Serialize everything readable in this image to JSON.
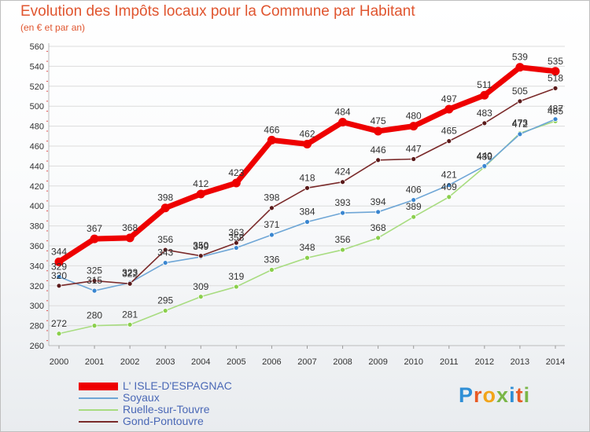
{
  "header": {
    "title": "Evolution des Impôts locaux pour la Commune par Habitant",
    "subtitle": "(en € et par an)"
  },
  "brand": {
    "text": "Proxiti",
    "letter_colors": [
      "#2f8fd6",
      "#e85a24",
      "#f2a51a",
      "#7ab648",
      "#2f8fd6",
      "#e85a24",
      "#7ab648"
    ]
  },
  "chart_data": {
    "type": "line",
    "title": "Evolution des Impôts locaux pour la Commune par Habitant",
    "subtitle": "(en € et par an)",
    "xlabel": "",
    "ylabel": "",
    "x": [
      "2000",
      "2001",
      "2002",
      "2003",
      "2004",
      "2005",
      "2006",
      "2007",
      "2008",
      "2009",
      "2010",
      "2011",
      "2012",
      "2013",
      "2014"
    ],
    "ylim": [
      260,
      560
    ],
    "yticks": [
      260,
      280,
      300,
      320,
      340,
      360,
      380,
      400,
      420,
      440,
      460,
      480,
      500,
      520,
      540,
      560
    ],
    "grid": "horizontal",
    "legend_position": "bottom-left",
    "series": [
      {
        "name": "L' ISLE-D'ESPAGNAC",
        "color": "#ee0000",
        "emphasis": "thick",
        "values": [
          344,
          367,
          368,
          398,
          412,
          423,
          466,
          462,
          484,
          475,
          480,
          497,
          511,
          539,
          535
        ]
      },
      {
        "name": "Soyaux",
        "color": "#6ea6d6",
        "marker": "#3a86d0",
        "values": [
          329,
          315,
          323,
          343,
          349,
          358,
          371,
          384,
          393,
          394,
          406,
          421,
          440,
          472,
          487
        ]
      },
      {
        "name": "Ruelle-sur-Touvre",
        "color": "#a8dc80",
        "marker": "#8acf4c",
        "values": [
          272,
          280,
          281,
          295,
          309,
          319,
          336,
          348,
          356,
          368,
          389,
          409,
          439,
          473,
          485
        ]
      },
      {
        "name": "Gond-Pontouvre",
        "color": "#7a2a2a",
        "marker": "#5a1a1a",
        "values": [
          320,
          325,
          322,
          356,
          350,
          363,
          398,
          418,
          424,
          446,
          447,
          465,
          483,
          505,
          518
        ]
      }
    ]
  }
}
